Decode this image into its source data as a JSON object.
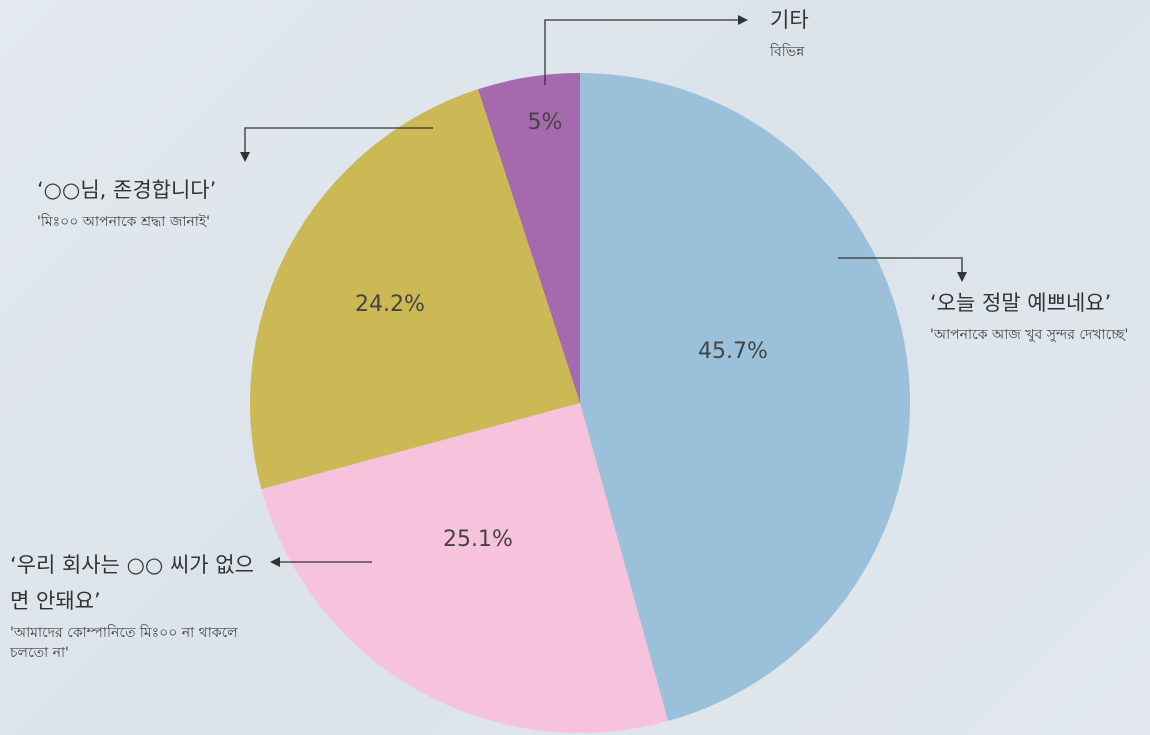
{
  "chart_data": {
    "type": "pie",
    "categories": [
      "‘오늘 정말 예쁘네요’",
      "‘우리 회사는 ○○ 씨가 없으면 안돼요’",
      "‘○○님, 존경합니다’",
      "기타"
    ],
    "descriptions": [
      "'আপনাকে আজ খুব সুন্দর দেখাচ্ছে'",
      "'আমাদের কোম্পানিতে মিঃ০০ না থাকলে চলতো না'",
      "'মিঃ০০ আপনাকে শ্রদ্ধা জানাই'",
      "বিভিন্ন"
    ],
    "values": [
      45.7,
      25.1,
      24.2,
      5
    ],
    "value_labels": [
      "45.7%",
      "25.1%",
      "24.2%",
      "5%"
    ],
    "colors": [
      "#9bc0da",
      "#f7c3dc",
      "#cdb856",
      "#a46aad"
    ]
  }
}
